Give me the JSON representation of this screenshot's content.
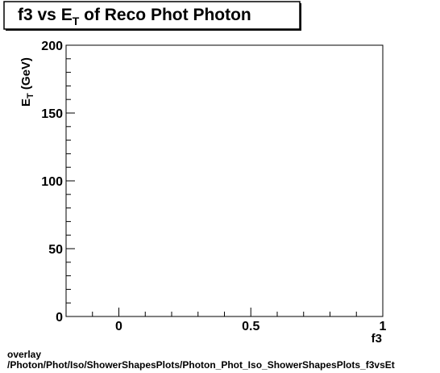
{
  "chart_data": {
    "type": "scatter",
    "title_parts": {
      "pre": "f3 vs E",
      "sub": "T",
      "post": " of Reco Phot Photon"
    },
    "xlabel": "f3",
    "ylabel_parts": {
      "main": "E",
      "sub": "T",
      "post": " (GeV)"
    },
    "xlim": [
      -0.2,
      1.0
    ],
    "ylim": [
      0,
      200
    ],
    "xticks": [
      {
        "value": 0,
        "label": "0"
      },
      {
        "value": 0.5,
        "label": "0.5"
      },
      {
        "value": 1,
        "label": "1"
      }
    ],
    "yticks": [
      {
        "value": 0,
        "label": "0"
      },
      {
        "value": 50,
        "label": "50"
      },
      {
        "value": 100,
        "label": "100"
      },
      {
        "value": 150,
        "label": "150"
      },
      {
        "value": 200,
        "label": "200"
      }
    ],
    "x_minor_step": 0.1,
    "y_minor_step": 10,
    "points": [],
    "grid": false,
    "legend": "none"
  },
  "footer": {
    "line1": "overlay",
    "line2": "/Photon/Phot/Iso/ShowerShapesPlots/Photon_Phot_Iso_ShowerShapesPlots_f3vsEt"
  }
}
